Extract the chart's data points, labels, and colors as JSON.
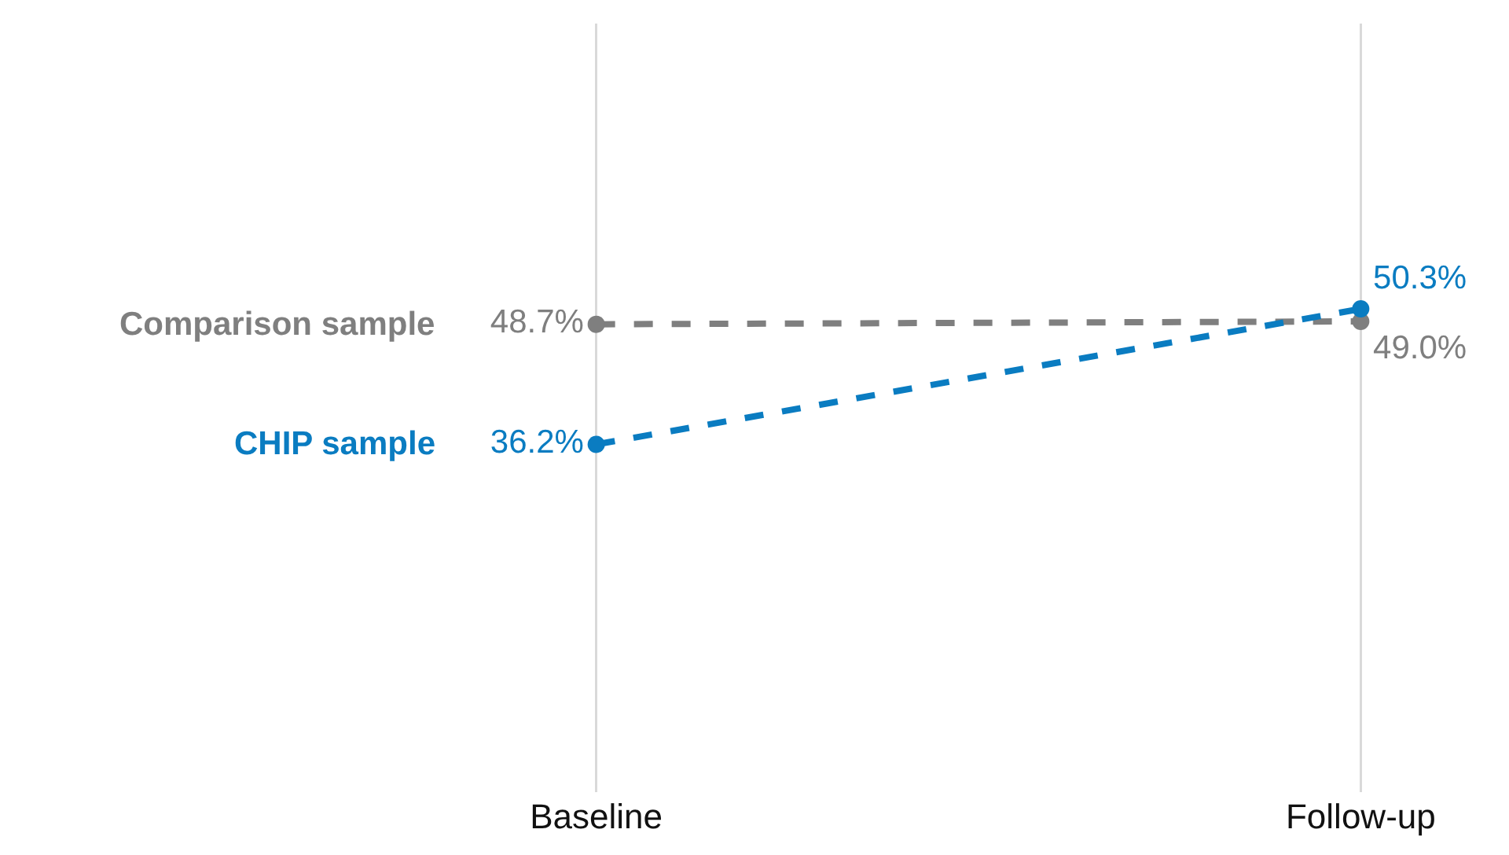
{
  "chart_data": {
    "type": "line",
    "categories": [
      "Baseline",
      "Follow-up"
    ],
    "ylim": [
      0,
      80
    ],
    "grid": "x",
    "marker": "circle",
    "line_style": "dashed",
    "legend": false,
    "tick_labels": "x",
    "series": [
      {
        "name": "Comparison sample",
        "color": "#7f7f7f",
        "values": [
          48.7,
          49.0
        ],
        "value_labels": [
          "48.7%",
          "49.0%"
        ]
      },
      {
        "name": "CHIP sample",
        "color": "#0a7cc1",
        "values": [
          36.2,
          50.3
        ],
        "value_labels": [
          "36.2%",
          "50.3%"
        ]
      }
    ]
  }
}
